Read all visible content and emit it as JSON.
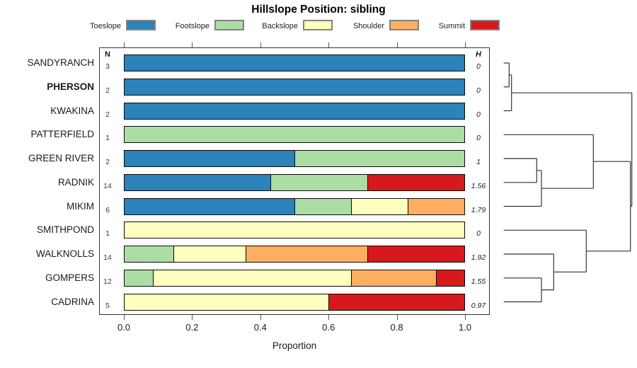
{
  "title": "Hillslope Position: sibling",
  "chart_data": {
    "type": "bar",
    "subtype": "stacked-horizontal-proportion-with-dendrogram",
    "title": "Hillslope Position: sibling",
    "xlabel": "Proportion",
    "xlim": [
      0,
      1
    ],
    "grid": false,
    "legend_position": "top",
    "colors": {
      "Toeslope": "#2B83BA",
      "Footslope": "#ABDDA4",
      "Backslope": "#FFFFBF",
      "Shoulder": "#FDAE61",
      "Summit": "#D7191C"
    },
    "legend": [
      {
        "label": "Toeslope",
        "color": "#2B83BA"
      },
      {
        "label": "Footslope",
        "color": "#ABDDA4"
      },
      {
        "label": "Backslope",
        "color": "#FFFFBF"
      },
      {
        "label": "Shoulder",
        "color": "#FDAE61"
      },
      {
        "label": "Summit",
        "color": "#D7191C"
      }
    ],
    "columns": {
      "n_header": "N",
      "h_header": "H"
    },
    "x_axis": {
      "ticks": [
        {
          "label": "0.0",
          "value": 0.0
        },
        {
          "label": "0.2",
          "value": 0.2
        },
        {
          "label": "0.4",
          "value": 0.4
        },
        {
          "label": "0.6",
          "value": 0.6
        },
        {
          "label": "0.8",
          "value": 0.8
        },
        {
          "label": "1.0",
          "value": 1.0
        }
      ]
    },
    "rows": [
      {
        "label": "SANDYRANCH",
        "bold": false,
        "n": "3",
        "h": "0",
        "segments": [
          {
            "category": "Toeslope",
            "value": 1.0
          }
        ]
      },
      {
        "label": "PHERSON",
        "bold": true,
        "n": "2",
        "h": "0",
        "segments": [
          {
            "category": "Toeslope",
            "value": 1.0
          }
        ]
      },
      {
        "label": "KWAKINA",
        "bold": false,
        "n": "2",
        "h": "0",
        "segments": [
          {
            "category": "Toeslope",
            "value": 1.0
          }
        ]
      },
      {
        "label": "PATTERFIELD",
        "bold": false,
        "n": "1",
        "h": "0",
        "segments": [
          {
            "category": "Footslope",
            "value": 1.0
          }
        ]
      },
      {
        "label": "GREEN RIVER",
        "bold": false,
        "n": "2",
        "h": "1",
        "segments": [
          {
            "category": "Toeslope",
            "value": 0.5
          },
          {
            "category": "Footslope",
            "value": 0.5
          }
        ]
      },
      {
        "label": "RADNIK",
        "bold": false,
        "n": "14",
        "h": "1.56",
        "segments": [
          {
            "category": "Toeslope",
            "value": 0.429
          },
          {
            "category": "Footslope",
            "value": 0.286
          },
          {
            "category": "Summit",
            "value": 0.285
          }
        ]
      },
      {
        "label": "MIKIM",
        "bold": false,
        "n": "6",
        "h": "1.79",
        "segments": [
          {
            "category": "Toeslope",
            "value": 0.5
          },
          {
            "category": "Footslope",
            "value": 0.167
          },
          {
            "category": "Backslope",
            "value": 0.167
          },
          {
            "category": "Shoulder",
            "value": 0.166
          }
        ]
      },
      {
        "label": "SMITHPOND",
        "bold": false,
        "n": "1",
        "h": "0",
        "segments": [
          {
            "category": "Backslope",
            "value": 1.0
          }
        ]
      },
      {
        "label": "WALKNOLLS",
        "bold": false,
        "n": "14",
        "h": "1.92",
        "segments": [
          {
            "category": "Footslope",
            "value": 0.143
          },
          {
            "category": "Backslope",
            "value": 0.214
          },
          {
            "category": "Shoulder",
            "value": 0.357
          },
          {
            "category": "Summit",
            "value": 0.286
          }
        ]
      },
      {
        "label": "GOMPERS",
        "bold": false,
        "n": "12",
        "h": "1.55",
        "segments": [
          {
            "category": "Footslope",
            "value": 0.083
          },
          {
            "category": "Backslope",
            "value": 0.584
          },
          {
            "category": "Shoulder",
            "value": 0.25
          },
          {
            "category": "Summit",
            "value": 0.083
          }
        ]
      },
      {
        "label": "CADRINA",
        "bold": false,
        "n": "5",
        "h": "0.97",
        "segments": [
          {
            "category": "Backslope",
            "value": 0.6
          },
          {
            "category": "Summit",
            "value": 0.4
          }
        ]
      }
    ],
    "dendrogram": {
      "segments": [
        [
          711.7,
          89.0,
          719.3,
          89.0
        ],
        [
          711.7,
          122.8,
          719.3,
          122.8
        ],
        [
          719.3,
          89.0,
          719.3,
          122.8
        ],
        [
          719.3,
          105.9,
          722.7,
          105.9
        ],
        [
          711.7,
          156.5,
          722.7,
          156.5
        ],
        [
          722.7,
          105.9,
          722.7,
          156.5
        ],
        [
          722.7,
          131.2,
          892.7,
          131.2
        ],
        [
          711.7,
          190.3,
          838.3,
          190.3
        ],
        [
          711.7,
          224.0,
          758.3,
          224.0
        ],
        [
          711.7,
          257.8,
          758.3,
          257.8
        ],
        [
          758.3,
          224.0,
          758.3,
          257.8
        ],
        [
          758.3,
          240.9,
          765.0,
          240.9
        ],
        [
          711.7,
          291.5,
          765.0,
          291.5
        ],
        [
          765.0,
          240.9,
          765.0,
          291.5
        ],
        [
          765.0,
          266.2,
          838.3,
          266.2
        ],
        [
          838.3,
          190.3,
          838.3,
          266.2
        ],
        [
          838.3,
          228.2,
          890.7,
          228.2
        ],
        [
          711.7,
          325.3,
          828.3,
          325.3
        ],
        [
          711.7,
          359.0,
          782.3,
          359.0
        ],
        [
          711.7,
          392.8,
          765.0,
          392.8
        ],
        [
          711.7,
          426.5,
          765.0,
          426.5
        ],
        [
          765.0,
          392.8,
          765.0,
          426.5
        ],
        [
          765.0,
          409.6,
          782.3,
          409.6
        ],
        [
          782.3,
          359.0,
          782.3,
          409.6
        ],
        [
          782.3,
          384.3,
          828.3,
          384.3
        ],
        [
          828.3,
          325.3,
          828.3,
          384.3
        ],
        [
          828.3,
          354.8,
          890.7,
          354.8
        ],
        [
          890.7,
          228.2,
          890.7,
          354.8
        ],
        [
          890.7,
          291.5,
          892.7,
          291.5
        ],
        [
          892.7,
          131.2,
          892.7,
          291.5
        ]
      ]
    }
  }
}
